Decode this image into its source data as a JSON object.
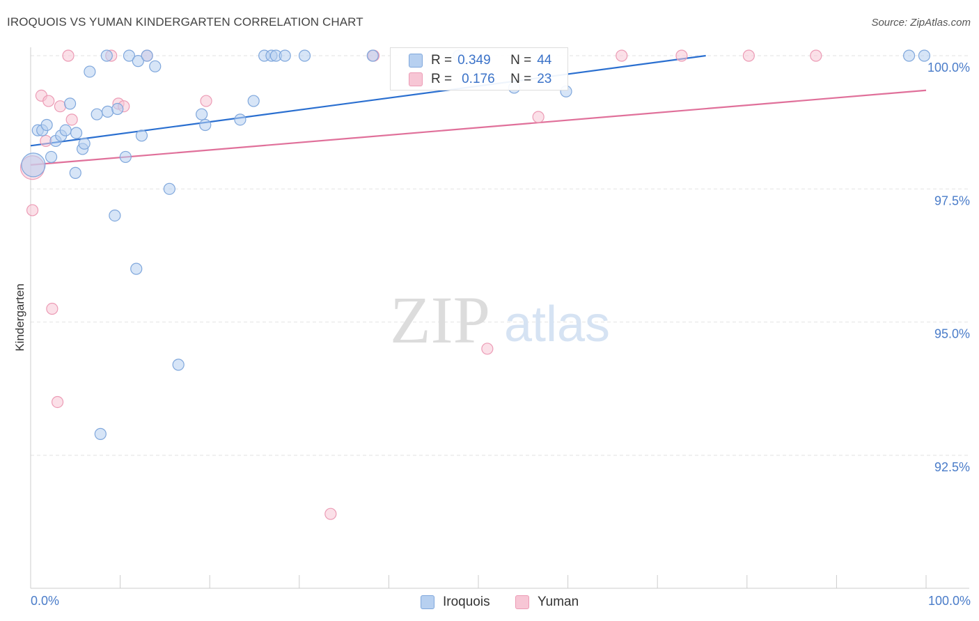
{
  "header": {
    "title": "IROQUOIS VS YUMAN KINDERGARTEN CORRELATION CHART",
    "source": "Source: ZipAtlas.com"
  },
  "watermark": {
    "zip": "ZIP",
    "atlas": "atlas"
  },
  "legend": {
    "rows": [
      {
        "r_label": "R =",
        "r_value": "0.349",
        "n_label": "N =",
        "n_value": "44"
      },
      {
        "r_label": "R =",
        "r_value": "0.176",
        "n_label": "N =",
        "n_value": "23"
      }
    ]
  },
  "bottom_legend": {
    "iroquois": "Iroquois",
    "yuman": "Yuman"
  },
  "colors": {
    "iroquois_fill": "#b7d0f0",
    "iroquois_stroke": "#7fa7dc",
    "iroquois_line": "#2a6fd0",
    "yuman_fill": "#f7c6d5",
    "yuman_stroke": "#ec9bb5",
    "yuman_line": "#e0709a",
    "axis_text": "#4a7cc9",
    "grid": "#e2e2e2"
  },
  "chart_data": {
    "type": "scatter",
    "title": "IROQUOIS VS YUMAN KINDERGARTEN CORRELATION CHART",
    "xlabel": "",
    "ylabel": "Kindergarten",
    "xlim": [
      0,
      100
    ],
    "ylim": [
      90.2,
      100.4
    ],
    "x_tick_labels": [
      "0.0%",
      "100.0%"
    ],
    "y_ticks": [
      100.0,
      97.5,
      95.0,
      92.5
    ],
    "y_tick_labels": [
      "100.0%",
      "97.5%",
      "95.0%",
      "92.5%"
    ],
    "grid": true,
    "legend_position": "top-center",
    "series": [
      {
        "name": "Iroquois",
        "r": 0.349,
        "n": 44,
        "trend": {
          "x": [
            0,
            75.4
          ],
          "y": [
            98.31,
            100.0
          ]
        },
        "points": [
          {
            "x": 0.3,
            "y": 97.95,
            "big": true
          },
          {
            "x": 0.8,
            "y": 98.6
          },
          {
            "x": 1.3,
            "y": 98.6
          },
          {
            "x": 1.8,
            "y": 98.7
          },
          {
            "x": 2.3,
            "y": 98.1
          },
          {
            "x": 2.8,
            "y": 98.4
          },
          {
            "x": 3.4,
            "y": 98.5
          },
          {
            "x": 3.9,
            "y": 98.6
          },
          {
            "x": 4.4,
            "y": 99.1
          },
          {
            "x": 5.0,
            "y": 97.8
          },
          {
            "x": 5.1,
            "y": 98.55
          },
          {
            "x": 5.8,
            "y": 98.25
          },
          {
            "x": 6.0,
            "y": 98.35
          },
          {
            "x": 6.6,
            "y": 99.7
          },
          {
            "x": 7.4,
            "y": 98.9
          },
          {
            "x": 7.8,
            "y": 92.9
          },
          {
            "x": 8.5,
            "y": 100.0
          },
          {
            "x": 8.6,
            "y": 98.95
          },
          {
            "x": 9.4,
            "y": 97.0
          },
          {
            "x": 9.7,
            "y": 99.0
          },
          {
            "x": 10.6,
            "y": 98.1
          },
          {
            "x": 11.0,
            "y": 100.0
          },
          {
            "x": 11.8,
            "y": 96.0
          },
          {
            "x": 12.0,
            "y": 99.9
          },
          {
            "x": 12.4,
            "y": 98.5
          },
          {
            "x": 13.0,
            "y": 100.0
          },
          {
            "x": 13.9,
            "y": 99.8
          },
          {
            "x": 15.5,
            "y": 97.5
          },
          {
            "x": 16.5,
            "y": 94.2
          },
          {
            "x": 19.1,
            "y": 98.9
          },
          {
            "x": 19.5,
            "y": 98.7
          },
          {
            "x": 23.4,
            "y": 98.8
          },
          {
            "x": 24.9,
            "y": 99.15
          },
          {
            "x": 26.1,
            "y": 100.0
          },
          {
            "x": 26.9,
            "y": 100.0
          },
          {
            "x": 27.4,
            "y": 100.0
          },
          {
            "x": 28.4,
            "y": 100.0
          },
          {
            "x": 30.6,
            "y": 100.0
          },
          {
            "x": 38.2,
            "y": 100.0
          },
          {
            "x": 47.8,
            "y": 100.0
          },
          {
            "x": 54.0,
            "y": 99.4
          },
          {
            "x": 59.8,
            "y": 99.33
          },
          {
            "x": 98.1,
            "y": 100.0
          },
          {
            "x": 99.8,
            "y": 100.0
          }
        ]
      },
      {
        "name": "Yuman",
        "r": 0.176,
        "n": 23,
        "trend": {
          "x": [
            0,
            100
          ],
          "y": [
            97.95,
            99.35
          ]
        },
        "points": [
          {
            "x": 0.2,
            "y": 97.9,
            "big": true
          },
          {
            "x": 0.2,
            "y": 97.1
          },
          {
            "x": 1.2,
            "y": 99.25
          },
          {
            "x": 1.7,
            "y": 98.4
          },
          {
            "x": 2.0,
            "y": 99.15
          },
          {
            "x": 2.4,
            "y": 95.25
          },
          {
            "x": 3.0,
            "y": 93.5
          },
          {
            "x": 3.3,
            "y": 99.05
          },
          {
            "x": 4.2,
            "y": 100.0
          },
          {
            "x": 4.6,
            "y": 98.8
          },
          {
            "x": 9.0,
            "y": 100.0
          },
          {
            "x": 9.8,
            "y": 99.1
          },
          {
            "x": 10.4,
            "y": 99.05
          },
          {
            "x": 13.0,
            "y": 100.0
          },
          {
            "x": 19.6,
            "y": 99.15
          },
          {
            "x": 33.5,
            "y": 91.4
          },
          {
            "x": 38.3,
            "y": 100.0
          },
          {
            "x": 51.0,
            "y": 94.5
          },
          {
            "x": 56.7,
            "y": 98.85
          },
          {
            "x": 66.0,
            "y": 100.0
          },
          {
            "x": 72.7,
            "y": 100.0
          },
          {
            "x": 80.2,
            "y": 100.0
          },
          {
            "x": 87.7,
            "y": 100.0
          }
        ]
      }
    ]
  }
}
